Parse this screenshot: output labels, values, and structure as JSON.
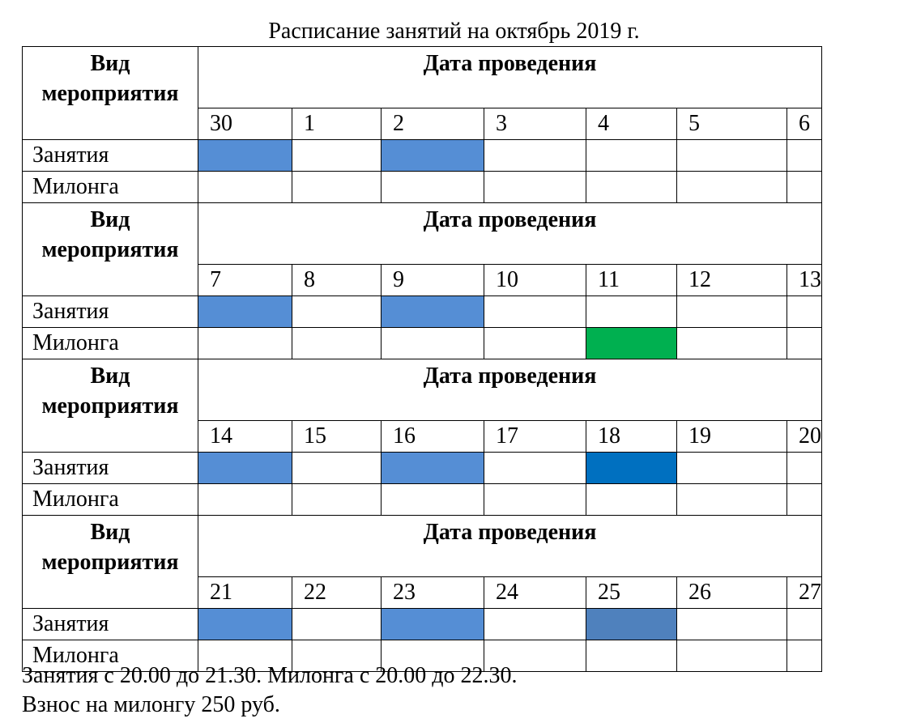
{
  "title": "Расписание занятий на октябрь 2019 г.",
  "header": {
    "type_label": "Вид мероприятия",
    "date_label": "Дата проведения"
  },
  "row_labels": {
    "classes": "Занятия",
    "milonga": "Милонга"
  },
  "weeks": [
    {
      "dates": [
        "30",
        "1",
        "2",
        "3",
        "4",
        "5",
        "6"
      ],
      "classes": [
        "#558ed5",
        "",
        "#558ed5",
        "",
        "",
        "",
        ""
      ],
      "milonga": [
        "",
        "",
        "",
        "",
        "",
        "",
        ""
      ]
    },
    {
      "dates": [
        "7",
        "8",
        "9",
        "10",
        "11",
        "12",
        "13"
      ],
      "classes": [
        "#558ed5",
        "",
        "#558ed5",
        "",
        "",
        "",
        ""
      ],
      "milonga": [
        "",
        "",
        "",
        "",
        "#00b050",
        "",
        ""
      ]
    },
    {
      "dates": [
        "14",
        "15",
        "16",
        "17",
        "18",
        "19",
        "20"
      ],
      "classes": [
        "#558ed5",
        "",
        "#558ed5",
        "",
        "#0070c0",
        "",
        ""
      ],
      "milonga": [
        "",
        "",
        "",
        "",
        "",
        "",
        ""
      ]
    },
    {
      "dates": [
        "21",
        "22",
        "23",
        "24",
        "25",
        "26",
        "27"
      ],
      "classes": [
        "#558ed5",
        "",
        "#558ed5",
        "",
        "#4f81bd",
        "",
        ""
      ],
      "milonga": [
        "",
        "",
        "",
        "",
        "",
        "",
        ""
      ]
    }
  ],
  "notes": {
    "line1": "Занятия с 20.00 до 21.30. Милонга с 20.00 до 22.30.",
    "line2": "Взнос на милонгу 250 руб."
  }
}
